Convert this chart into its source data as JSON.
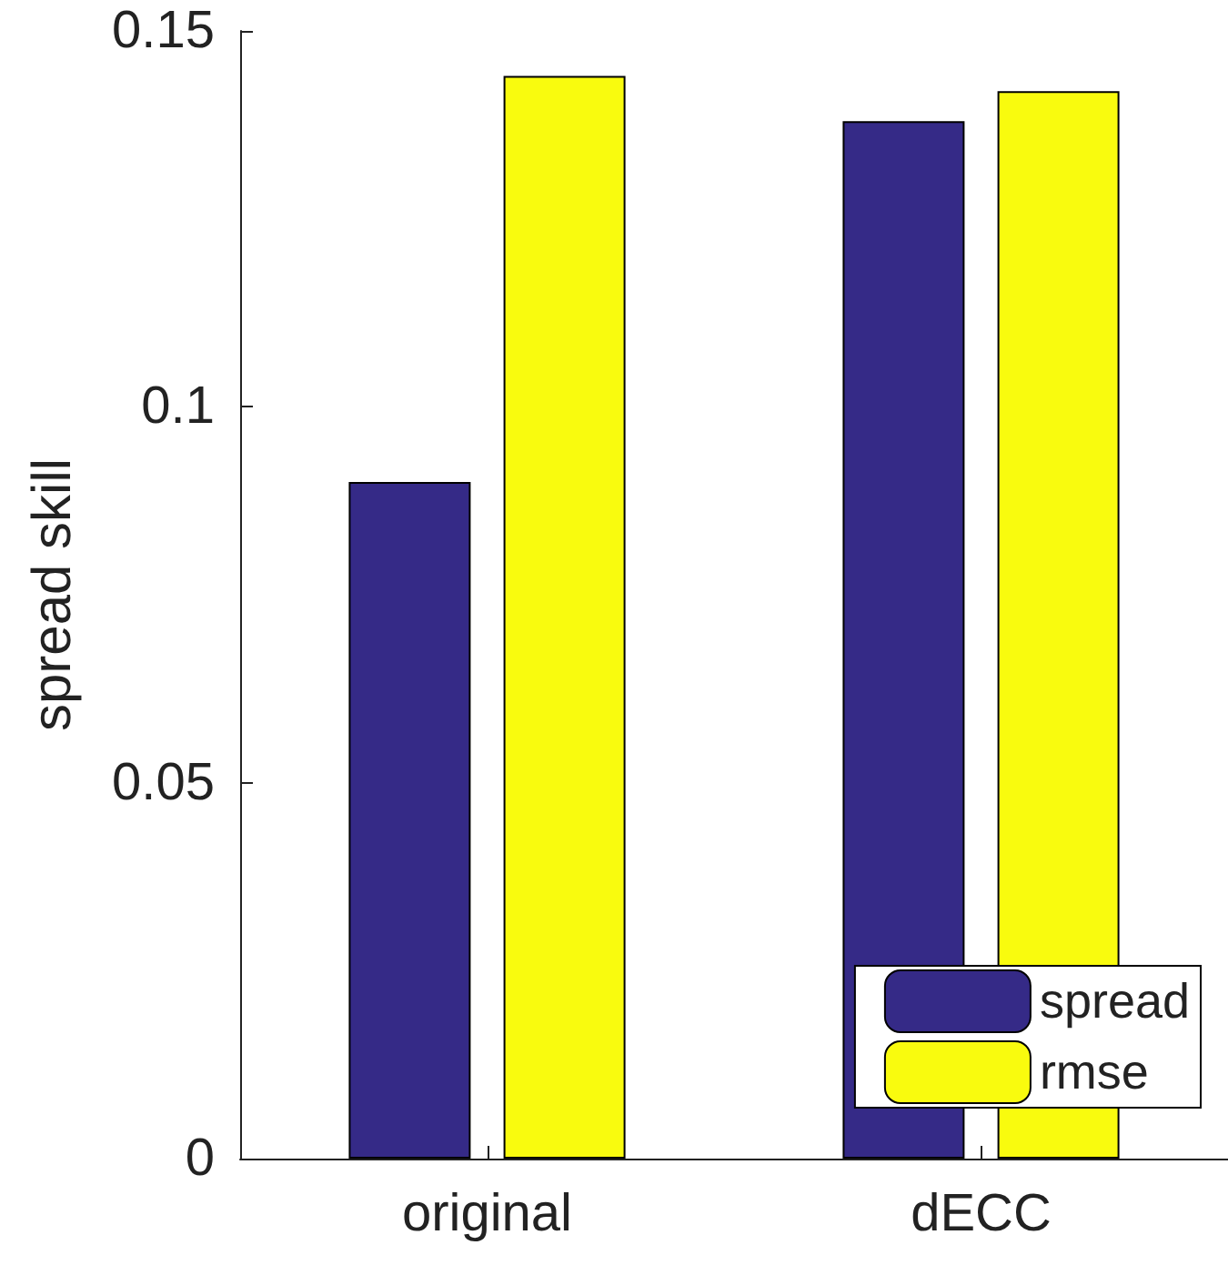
{
  "chart_data": {
    "type": "bar",
    "ylabel": "spread skill",
    "categories": [
      "original",
      "dECC"
    ],
    "series": [
      {
        "name": "spread",
        "color": "#352a87",
        "values": [
          0.09,
          0.138
        ]
      },
      {
        "name": "rmse",
        "color": "#f9fb0e",
        "values": [
          0.144,
          0.142
        ]
      }
    ],
    "ylim": [
      0,
      0.15
    ],
    "yticks": [
      0,
      0.05,
      0.1,
      0.15
    ],
    "grid": false,
    "legend": "bottom right"
  }
}
